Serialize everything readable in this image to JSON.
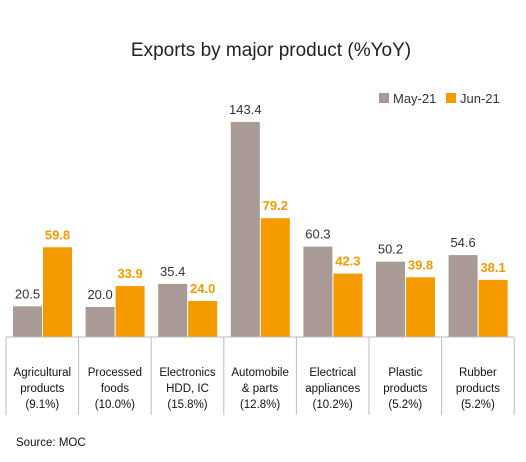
{
  "chart_data": {
    "type": "bar",
    "title": "Exports by major product (%YoY)",
    "categories": [
      [
        "Agricultural",
        "products",
        "(9.1%)"
      ],
      [
        "Processed",
        "foods",
        "(10.0%)"
      ],
      [
        "Electronics",
        "HDD, IC",
        "(15.8%)"
      ],
      [
        "Automobile",
        "& parts",
        "(12.8%)"
      ],
      [
        "Electrical",
        "appliances",
        "(10.2%)"
      ],
      [
        "Plastic",
        "products",
        "(5.2%)"
      ],
      [
        "Rubber",
        "products",
        "(5.2%)"
      ]
    ],
    "series": [
      {
        "name": "May-21",
        "color": "#aa9a96",
        "label_color": "#333333",
        "values": [
          20.5,
          20.0,
          35.4,
          143.4,
          60.3,
          50.2,
          54.6
        ],
        "labels": [
          "20.5",
          "20.0",
          "35.4",
          "143.4",
          "60.3",
          "50.2",
          "54.6"
        ]
      },
      {
        "name": "Jun-21",
        "color": "#f59b00",
        "label_color": "#f59b00",
        "values": [
          59.8,
          33.9,
          24.0,
          79.2,
          42.3,
          39.8,
          38.1
        ],
        "labels": [
          "59.8",
          "33.9",
          "24.0",
          "79.2",
          "42.3",
          "39.8",
          "38.1"
        ]
      }
    ],
    "ylim": [
      0,
      150
    ],
    "grid": false,
    "legend": "top-right",
    "source": "Source: MOC"
  }
}
